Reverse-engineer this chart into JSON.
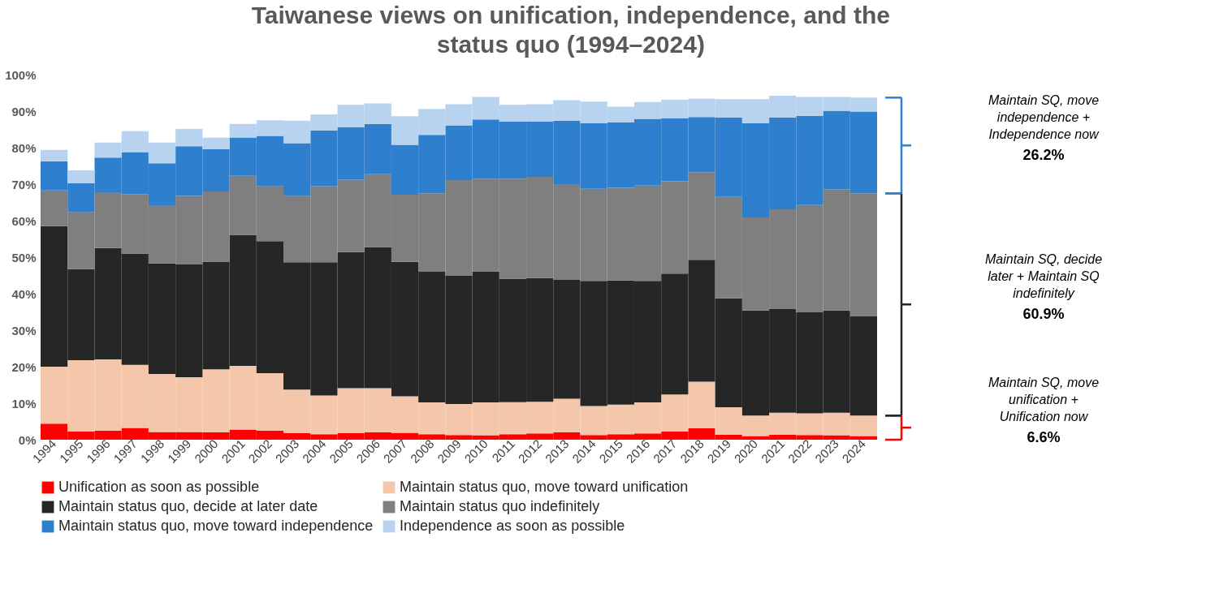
{
  "chart_data": {
    "type": "bar",
    "stacked": true,
    "title": "Taiwanese views on unification, independence, and the status quo (1994–2024)",
    "categories": [
      "1994",
      "1995",
      "1996",
      "1997",
      "1998",
      "1999",
      "2000",
      "2001",
      "2002",
      "2003",
      "2004",
      "2005",
      "2006",
      "2007",
      "2008",
      "2009",
      "2010",
      "2011",
      "2012",
      "2013",
      "2014",
      "2015",
      "2016",
      "2017",
      "2018",
      "2019",
      "2020",
      "2021",
      "2022",
      "2023",
      "2024"
    ],
    "series": [
      {
        "name": "Unification as soon as possible",
        "color": "#ff0000",
        "values": [
          4.4,
          2.3,
          2.5,
          3.2,
          2.1,
          2.1,
          2.0,
          2.8,
          2.5,
          1.8,
          1.5,
          1.8,
          2.0,
          1.9,
          1.5,
          1.3,
          1.2,
          1.5,
          1.7,
          2.0,
          1.3,
          1.5,
          1.7,
          2.3,
          3.1,
          1.4,
          1.0,
          1.4,
          1.3,
          1.2,
          1.0
        ]
      },
      {
        "name": "Maintain status quo, move toward unification",
        "color": "#f4c7ab",
        "values": [
          15.6,
          19.5,
          19.5,
          17.3,
          15.9,
          15.0,
          17.3,
          17.4,
          15.7,
          11.9,
          10.6,
          12.3,
          12.1,
          10.0,
          8.7,
          8.5,
          9.0,
          8.8,
          8.7,
          9.2,
          7.9,
          8.1,
          8.5,
          10.1,
          12.8,
          7.5,
          5.6,
          6.0,
          5.9,
          6.2,
          5.6
        ]
      },
      {
        "name": "Maintain status quo, decide at later date",
        "color": "#262626",
        "values": [
          38.5,
          24.9,
          30.5,
          30.5,
          30.3,
          30.9,
          29.5,
          35.9,
          36.2,
          34.9,
          36.5,
          37.3,
          38.7,
          36.8,
          35.8,
          35.1,
          35.9,
          33.8,
          33.9,
          32.6,
          34.3,
          34.0,
          33.3,
          33.1,
          33.4,
          29.8,
          28.8,
          28.4,
          27.7,
          28.0,
          27.3
        ]
      },
      {
        "name": "Maintain status quo indefinitely",
        "color": "#7f7f7f",
        "values": [
          9.8,
          15.6,
          15.3,
          16.3,
          15.9,
          18.8,
          19.2,
          16.2,
          15.0,
          18.1,
          20.9,
          19.9,
          19.9,
          18.4,
          21.5,
          26.2,
          25.4,
          27.4,
          27.7,
          26.2,
          25.2,
          25.4,
          26.1,
          25.3,
          24.0,
          27.8,
          25.5,
          27.3,
          29.4,
          33.2,
          33.6
        ]
      },
      {
        "name": "Maintain status quo, move toward independence",
        "color": "#2e7fce",
        "values": [
          8.0,
          8.0,
          9.5,
          11.5,
          11.5,
          13.6,
          11.6,
          10.5,
          13.8,
          14.5,
          15.2,
          14.3,
          13.8,
          13.7,
          16.0,
          15.0,
          16.2,
          15.6,
          15.1,
          17.4,
          18.0,
          17.9,
          18.3,
          17.2,
          15.1,
          21.7,
          25.8,
          25.1,
          24.4,
          21.5,
          22.4
        ]
      },
      {
        "name": "Independence as soon as possible",
        "color": "#b8d3ef",
        "values": [
          3.1,
          3.5,
          4.1,
          5.7,
          5.7,
          4.7,
          3.1,
          3.7,
          4.3,
          6.2,
          4.4,
          6.1,
          5.6,
          7.8,
          7.1,
          5.8,
          6.2,
          4.6,
          4.8,
          5.6,
          5.9,
          4.3,
          4.6,
          5.1,
          5.0,
          5.1,
          6.6,
          6.0,
          5.2,
          3.8,
          3.8
        ]
      }
    ],
    "ylim": [
      0,
      100
    ],
    "yticks": [
      {
        "value": 0,
        "label": "0%"
      },
      {
        "value": 10,
        "label": "10%"
      },
      {
        "value": 20,
        "label": "20%"
      },
      {
        "value": 30,
        "label": "30%"
      },
      {
        "value": 40,
        "label": "40%"
      },
      {
        "value": 50,
        "label": "50%"
      },
      {
        "value": 60,
        "label": "60%"
      },
      {
        "value": 70,
        "label": "70%"
      },
      {
        "value": 80,
        "label": "80%"
      },
      {
        "value": 90,
        "label": "90%"
      },
      {
        "value": 100,
        "label": "100%"
      }
    ],
    "grid": false,
    "legend": "bottom",
    "annotations": [
      "Maintain SQ, move independence + Independence now",
      "26.2%",
      "Maintain SQ, decide later + Maintain SQ indefinitely",
      "60.9%",
      "Maintain SQ, move unification + Unification now",
      "6.6%"
    ]
  }
}
